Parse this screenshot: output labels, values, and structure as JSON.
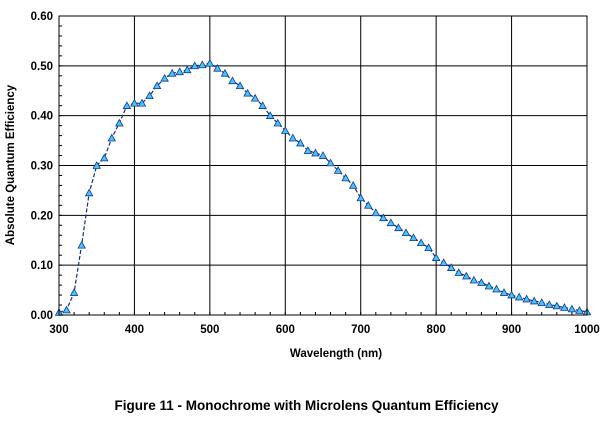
{
  "figure": {
    "caption": "Figure 11 - Monochrome with Microlens Quantum Efficiency"
  },
  "colors": {
    "line": "#1a2a8c",
    "marker_fill": "#4cc3f0",
    "marker_stroke": "#0a3a9a",
    "grid": "#000000"
  },
  "chart_data": {
    "type": "line",
    "title": "",
    "xlabel": "Wavelength (nm)",
    "ylabel": "Absolute Quantum Efficiency",
    "xlim": [
      300,
      1000
    ],
    "ylim": [
      0.0,
      0.6
    ],
    "x_ticks": [
      300,
      400,
      500,
      600,
      700,
      800,
      900,
      1000
    ],
    "x_tick_labels": [
      "300",
      "400",
      "500",
      "600",
      "700",
      "800",
      "900",
      "1000"
    ],
    "y_ticks": [
      0.0,
      0.1,
      0.2,
      0.3,
      0.4,
      0.5,
      0.6
    ],
    "y_tick_labels": [
      "0.00",
      "0.10",
      "0.20",
      "0.30",
      "0.40",
      "0.50",
      "0.60"
    ],
    "grid": true,
    "series": [
      {
        "name": "Quantum Efficiency",
        "marker": "triangle",
        "points": [
          [
            300,
            0.005
          ],
          [
            310,
            0.01
          ],
          [
            320,
            0.045
          ],
          [
            330,
            0.14
          ],
          [
            340,
            0.245
          ],
          [
            350,
            0.3
          ],
          [
            360,
            0.315
          ],
          [
            370,
            0.355
          ],
          [
            380,
            0.385
          ],
          [
            390,
            0.42
          ],
          [
            400,
            0.425
          ],
          [
            410,
            0.425
          ],
          [
            420,
            0.44
          ],
          [
            430,
            0.46
          ],
          [
            440,
            0.475
          ],
          [
            450,
            0.485
          ],
          [
            460,
            0.488
          ],
          [
            470,
            0.492
          ],
          [
            480,
            0.5
          ],
          [
            490,
            0.502
          ],
          [
            500,
            0.505
          ],
          [
            510,
            0.495
          ],
          [
            520,
            0.485
          ],
          [
            530,
            0.47
          ],
          [
            540,
            0.46
          ],
          [
            550,
            0.445
          ],
          [
            560,
            0.435
          ],
          [
            570,
            0.42
          ],
          [
            580,
            0.4
          ],
          [
            590,
            0.385
          ],
          [
            600,
            0.37
          ],
          [
            610,
            0.355
          ],
          [
            620,
            0.345
          ],
          [
            630,
            0.33
          ],
          [
            640,
            0.325
          ],
          [
            650,
            0.32
          ],
          [
            660,
            0.305
          ],
          [
            670,
            0.29
          ],
          [
            680,
            0.275
          ],
          [
            690,
            0.26
          ],
          [
            700,
            0.235
          ],
          [
            710,
            0.22
          ],
          [
            720,
            0.205
          ],
          [
            730,
            0.195
          ],
          [
            740,
            0.185
          ],
          [
            750,
            0.175
          ],
          [
            760,
            0.165
          ],
          [
            770,
            0.155
          ],
          [
            780,
            0.145
          ],
          [
            790,
            0.135
          ],
          [
            800,
            0.115
          ],
          [
            810,
            0.105
          ],
          [
            820,
            0.095
          ],
          [
            830,
            0.085
          ],
          [
            840,
            0.078
          ],
          [
            850,
            0.07
          ],
          [
            860,
            0.065
          ],
          [
            870,
            0.058
          ],
          [
            880,
            0.052
          ],
          [
            890,
            0.045
          ],
          [
            900,
            0.04
          ],
          [
            910,
            0.036
          ],
          [
            920,
            0.032
          ],
          [
            930,
            0.028
          ],
          [
            940,
            0.025
          ],
          [
            950,
            0.021
          ],
          [
            960,
            0.018
          ],
          [
            970,
            0.015
          ],
          [
            980,
            0.012
          ],
          [
            990,
            0.009
          ],
          [
            1000,
            0.006
          ]
        ]
      }
    ]
  }
}
